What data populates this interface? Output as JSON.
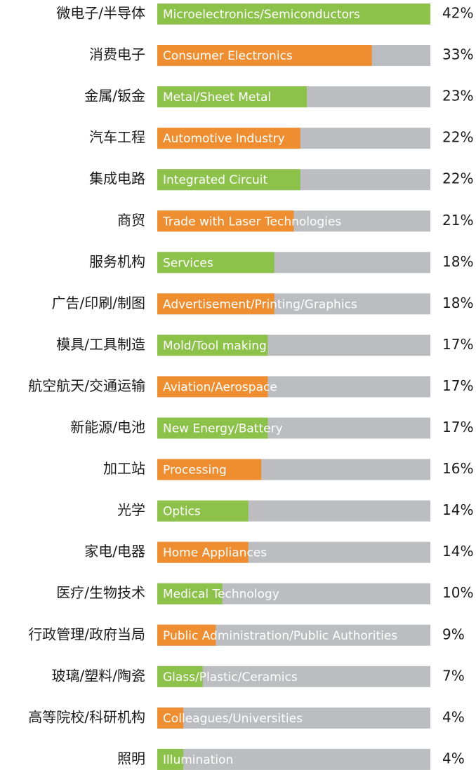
{
  "chart_data": {
    "type": "bar",
    "orientation": "horizontal",
    "categories": [
      "微电子/半导体",
      "消费电子",
      "金属/钣金",
      "汽车工程",
      "集成电路",
      "商贸",
      "服务机构",
      "广告/印刷/制图",
      "模具/工具制造",
      "航空航天/交通运输",
      "新能源/电池",
      "加工站",
      "光学",
      "家电/电器",
      "医疗/生物技术",
      "行政管理/政府当局",
      "玻璃/塑料/陶瓷",
      "高等院校/科研机构",
      "照明"
    ],
    "bar_labels": [
      "Microelectronics/Semiconductors",
      "Consumer Electronics",
      "Metal/Sheet Metal",
      "Automotive Industry",
      "Integrated Circuit",
      "Trade with Laser Technologies",
      "Services",
      "Advertisement/Printing/Graphics",
      "Mold/Tool making",
      "Aviation/Aerospace",
      "New Energy/Battery",
      "Processing",
      "Optics",
      "Home Appliances",
      "Medical Technology",
      "Public Administration/Public Authorities",
      "Glass/Plastic/Ceramics",
      "Colleagues/Universities",
      "Illumination"
    ],
    "values": [
      42,
      33,
      23,
      22,
      22,
      21,
      18,
      18,
      17,
      17,
      17,
      16,
      14,
      14,
      10,
      9,
      7,
      4,
      4
    ],
    "value_labels": [
      "42%",
      "33%",
      "23%",
      "22%",
      "22%",
      "21%",
      "18%",
      "18%",
      "17%",
      "17%",
      "17%",
      "16%",
      "14%",
      "14%",
      "10%",
      "9%",
      "7%",
      "4%",
      "4%"
    ],
    "colors": [
      "#8dc24a",
      "#ee8e30"
    ],
    "track_color": "#bcbdc0",
    "xlim": [
      0,
      42
    ]
  }
}
